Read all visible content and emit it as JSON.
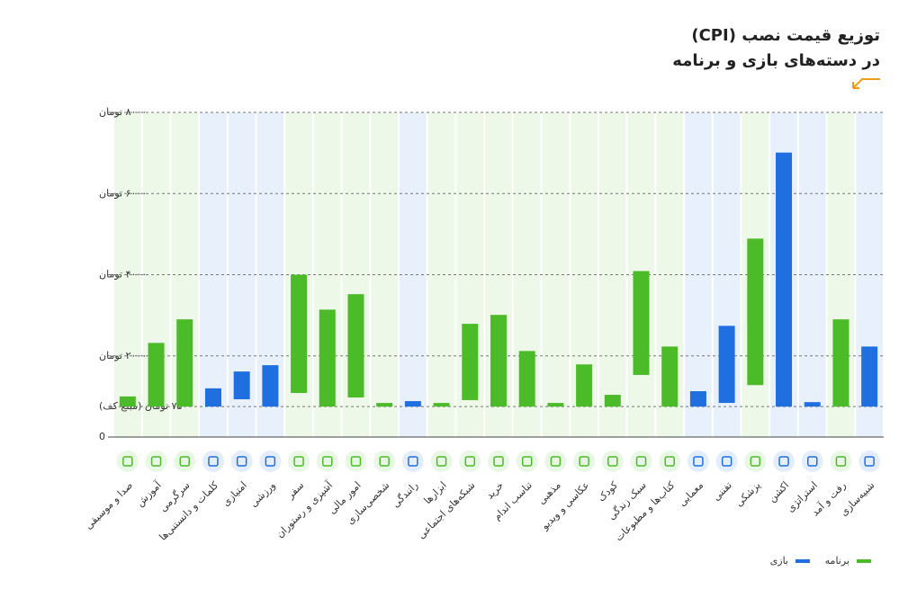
{
  "chart_data": {
    "type": "range-bar",
    "title": "توزیع قیمت نصب (CPI)",
    "subtitle": "در دسته‌های بازی و برنامه",
    "categories": [
      "صدا و موسیقی",
      "آموزش",
      "سرگرمی",
      "کلمات و دانستنی‌ها",
      "امتیازی",
      "ورزشی",
      "سفر",
      "آشپزی و رستوران",
      "امور مالی",
      "شخصی‌سازی",
      "رانندگی",
      "ابزارها",
      "شبکه‌های اجتماعی",
      "خرید",
      "تناسب اندام",
      "مذهبی",
      "عکاسی و ویدیو",
      "کودک",
      "سبک زندگی",
      "کتاب‌ها و مطبوعات",
      "معمایی",
      "تفننی",
      "پزشکی",
      "اکشن",
      "استراتژی",
      "رفت و آمد",
      "شبیه‌سازی"
    ],
    "series": [
      {
        "name": "برنامه",
        "color": "#4cbb2a",
        "low": [
          750,
          750,
          750,
          null,
          null,
          null,
          1085,
          750,
          975,
          750,
          null,
          750,
          910,
          750,
          750,
          750,
          750,
          750,
          1530,
          750,
          null,
          null,
          1280,
          null,
          null,
          750,
          null
        ],
        "high": [
          1000,
          2320,
          2900,
          null,
          null,
          null,
          4000,
          3140,
          3520,
          840,
          null,
          840,
          2790,
          3010,
          2120,
          840,
          1790,
          1040,
          4090,
          2230,
          null,
          null,
          4890,
          null,
          null,
          2900,
          null
        ]
      },
      {
        "name": "بازی",
        "color": "#1f6fe0",
        "low": [
          null,
          null,
          null,
          750,
          930,
          750,
          null,
          null,
          null,
          null,
          750,
          null,
          null,
          null,
          null,
          null,
          null,
          null,
          null,
          null,
          750,
          840,
          null,
          750,
          750,
          null,
          750
        ],
        "high": [
          null,
          null,
          null,
          1200,
          1615,
          1770,
          null,
          null,
          null,
          null,
          885,
          null,
          null,
          null,
          null,
          null,
          null,
          null,
          null,
          null,
          1130,
          2740,
          null,
          7010,
          860,
          null,
          2230
        ]
      }
    ],
    "ylim": [
      0,
      8000
    ],
    "yticks": [
      0,
      {
        "value": 750,
        "label": "۷۵۰ تومان (مبلغ کف)"
      },
      {
        "value": 2000,
        "label": "۲۰۰۰ تومان"
      },
      {
        "value": 4000,
        "label": "۴۰۰۰ تومان"
      },
      {
        "value": 6000,
        "label": "۶۰۰۰ تومان"
      },
      {
        "value": 8000,
        "label": "۸۰۰۰ تومان"
      }
    ],
    "grid": true
  }
}
